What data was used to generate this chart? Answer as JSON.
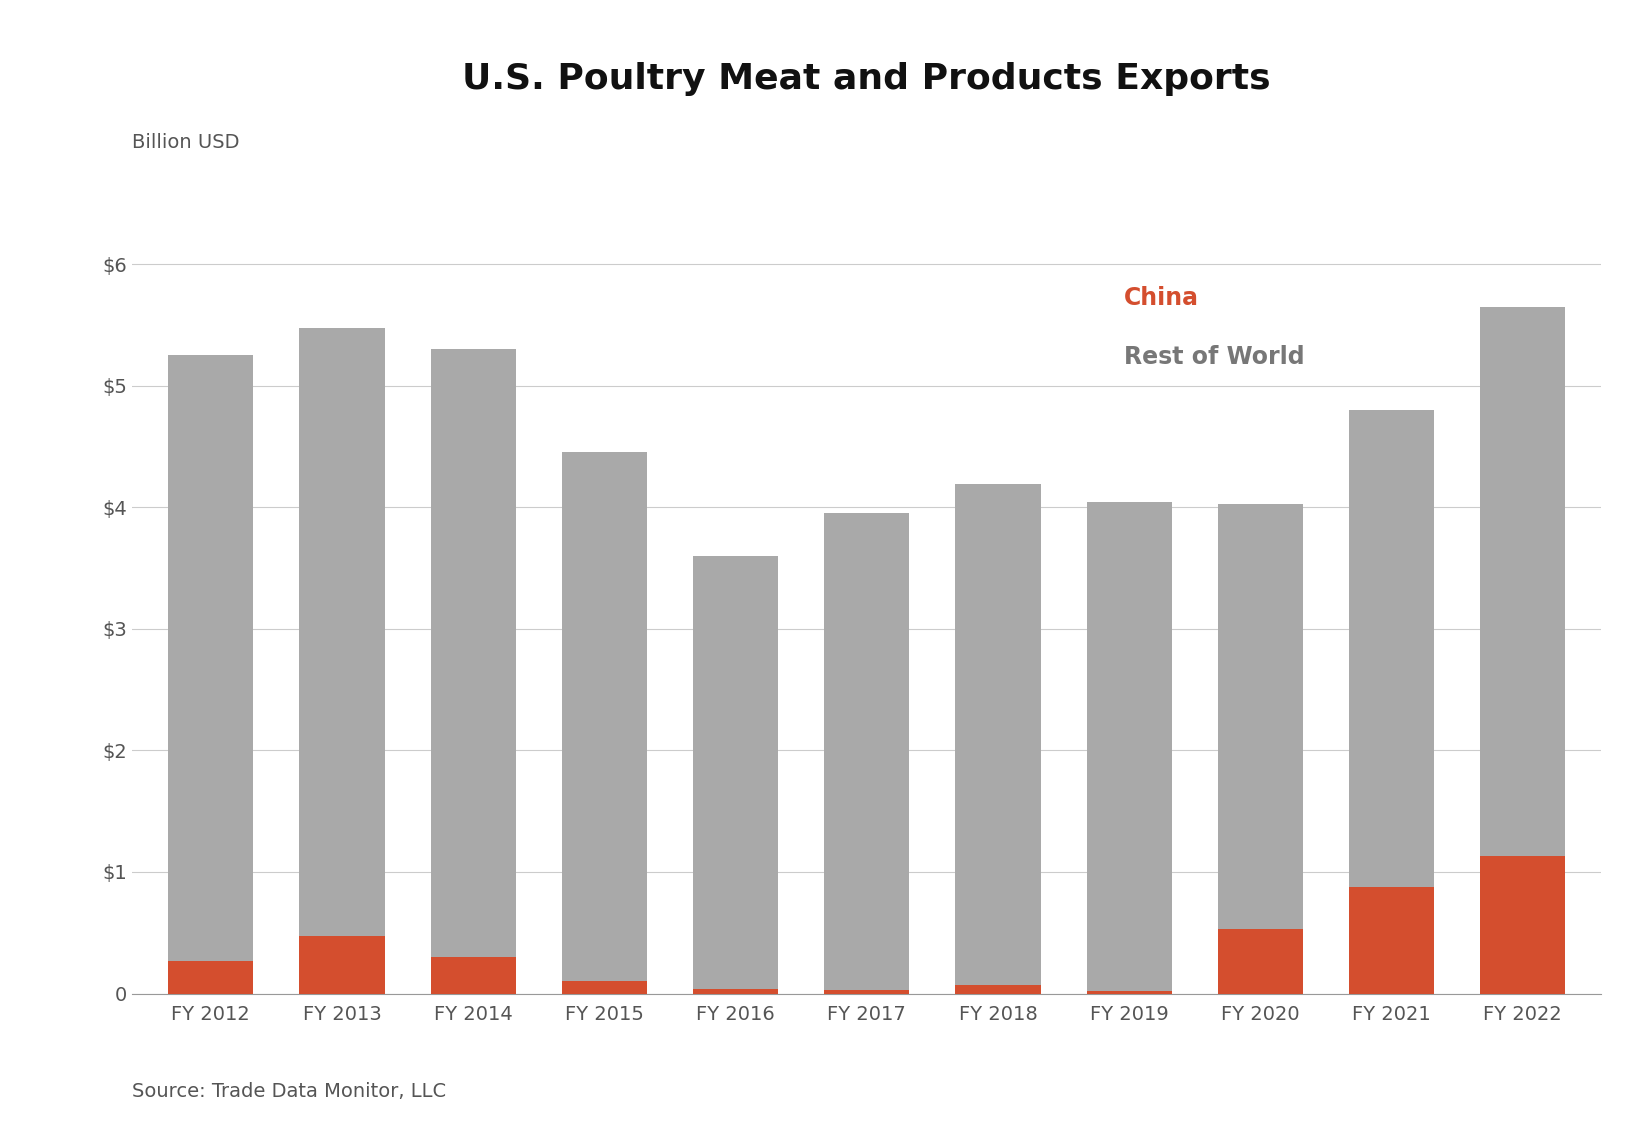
{
  "title": "U.S. Poultry Meat and Products Exports",
  "ylabel": "Billion USD",
  "source": "Source: Trade Data Monitor, LLC",
  "categories": [
    "FY 2012",
    "FY 2013",
    "FY 2014",
    "FY 2015",
    "FY 2016",
    "FY 2017",
    "FY 2018",
    "FY 2019",
    "FY 2020",
    "FY 2021",
    "FY 2022"
  ],
  "china_values": [
    0.27,
    0.47,
    0.3,
    0.1,
    0.04,
    0.03,
    0.07,
    0.02,
    0.53,
    0.88,
    1.13
  ],
  "row_values": [
    4.98,
    5.0,
    5.0,
    4.35,
    3.56,
    3.92,
    4.12,
    4.02,
    3.5,
    3.92,
    4.52
  ],
  "china_color": "#D44E2E",
  "row_color": "#A9A9A9",
  "ylim": [
    0,
    6.5
  ],
  "yticks": [
    0,
    1,
    2,
    3,
    4,
    5,
    6
  ],
  "ytick_labels": [
    "0",
    "$1",
    "$2",
    "$3",
    "$4",
    "$5",
    "$6"
  ],
  "title_fontsize": 26,
  "label_fontsize": 14,
  "tick_fontsize": 14,
  "source_fontsize": 14,
  "legend_china_label": "China",
  "legend_row_label": "Rest of World",
  "background_color": "#FFFFFF",
  "grid_color": "#CCCCCC"
}
